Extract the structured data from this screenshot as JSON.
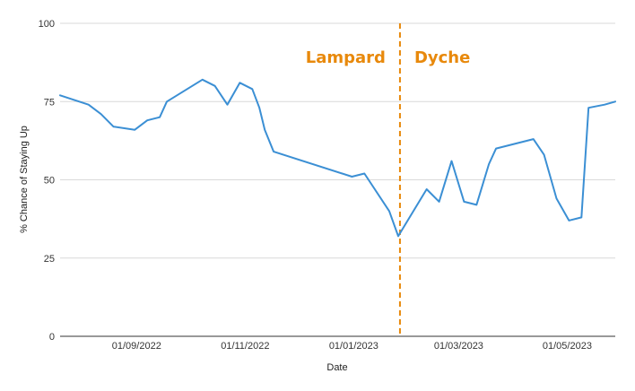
{
  "chart_data": {
    "type": "line",
    "xlabel": "Date",
    "ylabel": "% Chance of Staying Up",
    "ylim": [
      0,
      100
    ],
    "xlim": [
      "2022-07-20",
      "2023-05-28"
    ],
    "yticks": [
      0,
      25,
      50,
      75,
      100
    ],
    "xticks": [
      {
        "date": "2022-09-01",
        "label": "01/09/2022"
      },
      {
        "date": "2022-11-01",
        "label": "01/11/2022"
      },
      {
        "date": "2023-01-01",
        "label": "01/01/2023"
      },
      {
        "date": "2023-03-01",
        "label": "01/03/2023"
      },
      {
        "date": "2023-05-01",
        "label": "01/05/2023"
      }
    ],
    "grid": "horizontal",
    "colors": {
      "line": "#3b8fd4",
      "marker": "#e8890c",
      "grid": "#d9d9d9"
    },
    "series": [
      {
        "points": [
          {
            "x": "2022-07-20",
            "y": 77
          },
          {
            "x": "2022-08-05",
            "y": 74
          },
          {
            "x": "2022-08-12",
            "y": 71
          },
          {
            "x": "2022-08-19",
            "y": 67
          },
          {
            "x": "2022-08-31",
            "y": 66
          },
          {
            "x": "2022-09-07",
            "y": 69
          },
          {
            "x": "2022-09-14",
            "y": 70
          },
          {
            "x": "2022-09-18",
            "y": 75
          },
          {
            "x": "2022-10-08",
            "y": 82
          },
          {
            "x": "2022-10-15",
            "y": 80
          },
          {
            "x": "2022-10-22",
            "y": 74
          },
          {
            "x": "2022-10-29",
            "y": 81
          },
          {
            "x": "2022-11-05",
            "y": 79
          },
          {
            "x": "2022-11-09",
            "y": 73
          },
          {
            "x": "2022-11-12",
            "y": 66
          },
          {
            "x": "2022-11-17",
            "y": 59
          },
          {
            "x": "2022-12-31",
            "y": 51
          },
          {
            "x": "2023-01-07",
            "y": 52
          },
          {
            "x": "2023-01-21",
            "y": 40
          },
          {
            "x": "2023-01-26",
            "y": 32
          },
          {
            "x": "2023-02-11",
            "y": 47
          },
          {
            "x": "2023-02-18",
            "y": 43
          },
          {
            "x": "2023-02-25",
            "y": 56
          },
          {
            "x": "2023-03-04",
            "y": 43
          },
          {
            "x": "2023-03-11",
            "y": 42
          },
          {
            "x": "2023-03-18",
            "y": 55
          },
          {
            "x": "2023-03-22",
            "y": 60
          },
          {
            "x": "2023-04-12",
            "y": 63
          },
          {
            "x": "2023-04-18",
            "y": 58
          },
          {
            "x": "2023-04-25",
            "y": 44
          },
          {
            "x": "2023-05-02",
            "y": 37
          },
          {
            "x": "2023-05-09",
            "y": 38
          },
          {
            "x": "2023-05-13",
            "y": 73
          },
          {
            "x": "2023-05-22",
            "y": 74
          },
          {
            "x": "2023-05-28",
            "y": 75
          }
        ]
      }
    ],
    "annotations": [
      {
        "type": "vline",
        "x": "2023-01-27",
        "style": "dashed"
      },
      {
        "type": "text",
        "text": "Lampard",
        "side": "left-of-line"
      },
      {
        "type": "text",
        "text": "Dyche",
        "side": "right-of-line"
      }
    ]
  }
}
